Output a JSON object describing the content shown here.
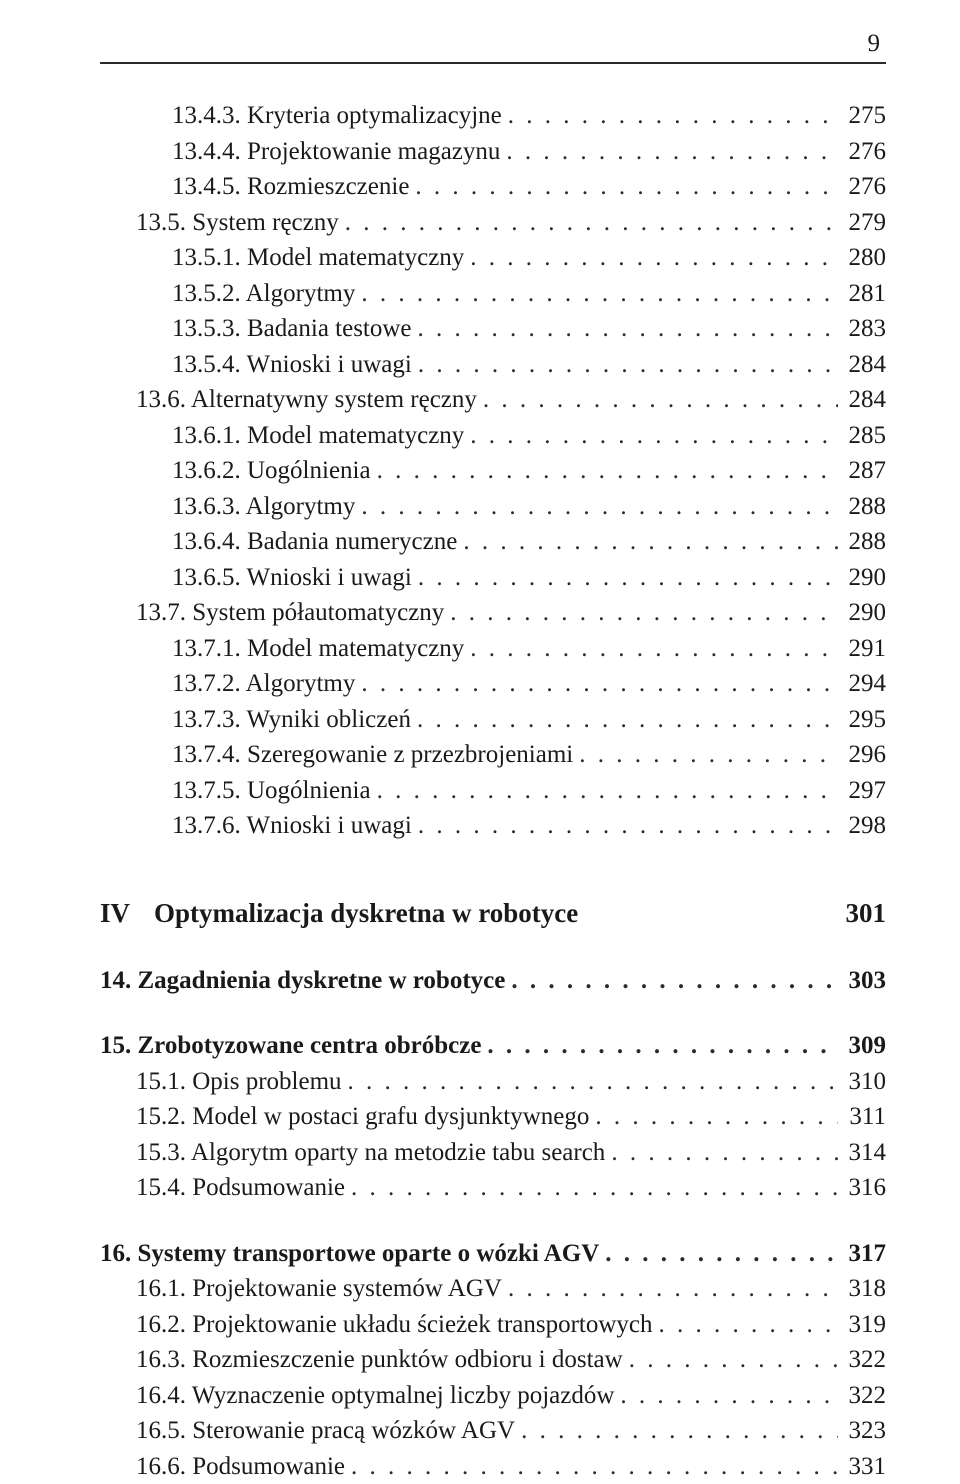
{
  "page_number": "9",
  "dots": ". . . . . . . . . . . . . . . . . . . . . . . . . . . . . . . . . . . . . . . . . . . . . . . . . . . . . . . . . . . . . . . . . . . . . . . . . . . .",
  "block1": [
    {
      "lvl": 3,
      "label": "13.4.3. Kryteria optymalizacyjne",
      "page": "275"
    },
    {
      "lvl": 3,
      "label": "13.4.4. Projektowanie magazynu",
      "page": "276"
    },
    {
      "lvl": 3,
      "label": "13.4.5. Rozmieszczenie",
      "page": "276"
    },
    {
      "lvl": 2,
      "label": "13.5. System ręczny",
      "page": "279"
    },
    {
      "lvl": 3,
      "label": "13.5.1. Model matematyczny",
      "page": "280"
    },
    {
      "lvl": 3,
      "label": "13.5.2. Algorytmy",
      "page": "281"
    },
    {
      "lvl": 3,
      "label": "13.5.3. Badania testowe",
      "page": "283"
    },
    {
      "lvl": 3,
      "label": "13.5.4. Wnioski i uwagi",
      "page": "284"
    },
    {
      "lvl": 2,
      "label": "13.6. Alternatywny system ręczny",
      "page": "284"
    },
    {
      "lvl": 3,
      "label": "13.6.1. Model matematyczny",
      "page": "285"
    },
    {
      "lvl": 3,
      "label": "13.6.2. Uogólnienia",
      "page": "287"
    },
    {
      "lvl": 3,
      "label": "13.6.3. Algorytmy",
      "page": "288"
    },
    {
      "lvl": 3,
      "label": "13.6.4. Badania numeryczne",
      "page": "288"
    },
    {
      "lvl": 3,
      "label": "13.6.5. Wnioski i uwagi",
      "page": "290"
    },
    {
      "lvl": 2,
      "label": "13.7. System półautomatyczny",
      "page": "290"
    },
    {
      "lvl": 3,
      "label": "13.7.1. Model matematyczny",
      "page": "291"
    },
    {
      "lvl": 3,
      "label": "13.7.2. Algorytmy",
      "page": "294"
    },
    {
      "lvl": 3,
      "label": "13.7.3. Wyniki obliczeń",
      "page": "295"
    },
    {
      "lvl": 3,
      "label": "13.7.4. Szeregowanie z przezbrojeniami",
      "page": "296"
    },
    {
      "lvl": 3,
      "label": "13.7.5. Uogólnienia",
      "page": "297"
    },
    {
      "lvl": 3,
      "label": "13.7.6. Wnioski i uwagi",
      "page": "298"
    }
  ],
  "part": {
    "num": "IV",
    "title": "Optymalizacja dyskretna w robotyce",
    "page": "301"
  },
  "block2": [
    {
      "lvl": 0,
      "bold": true,
      "gap": true,
      "label": "14. Zagadnienia dyskretne w robotyce",
      "page": "303"
    },
    {
      "lvl": 0,
      "bold": true,
      "gap": true,
      "label": "15. Zrobotyzowane centra obróbcze",
      "page": "309"
    },
    {
      "lvl": 2,
      "label": "15.1. Opis problemu",
      "page": "310"
    },
    {
      "lvl": 2,
      "label": "15.2. Model w postaci grafu dysjunktywnego",
      "page": "311"
    },
    {
      "lvl": 2,
      "label": "15.3. Algorytm oparty na metodzie tabu search",
      "page": "314"
    },
    {
      "lvl": 2,
      "label": "15.4. Podsumowanie",
      "page": "316"
    },
    {
      "lvl": 0,
      "bold": true,
      "gap": true,
      "label": "16. Systemy transportowe oparte o wózki AGV",
      "page": "317"
    },
    {
      "lvl": 2,
      "label": "16.1. Projektowanie systemów AGV",
      "page": "318"
    },
    {
      "lvl": 2,
      "label": "16.2. Projektowanie układu ścieżek transportowych",
      "page": "319"
    },
    {
      "lvl": 2,
      "label": "16.3. Rozmieszczenie punktów odbioru i dostaw",
      "page": "322"
    },
    {
      "lvl": 2,
      "label": "16.4. Wyznaczenie optymalnej liczby pojazdów",
      "page": "322"
    },
    {
      "lvl": 2,
      "label": "16.5. Sterowanie pracą wózków AGV",
      "page": "323"
    },
    {
      "lvl": 2,
      "label": "16.6. Podsumowanie",
      "page": "331"
    }
  ]
}
